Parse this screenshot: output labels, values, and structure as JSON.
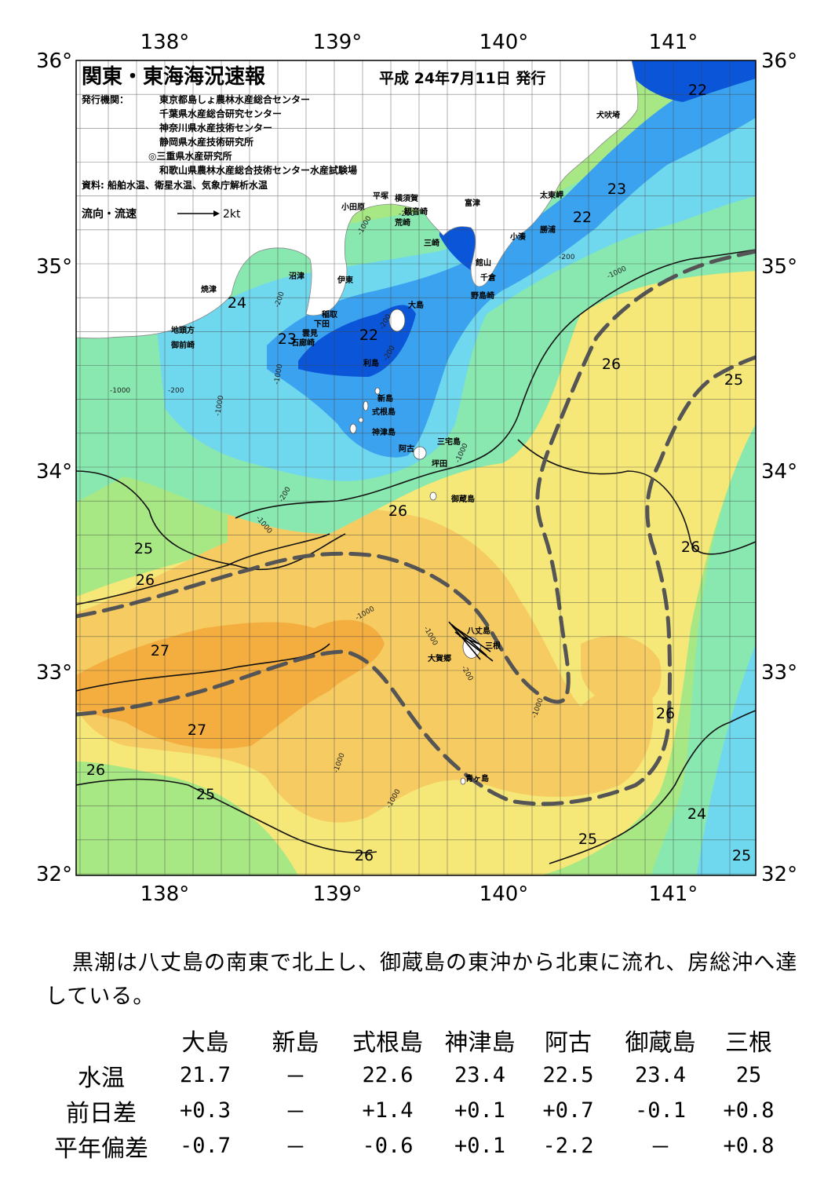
{
  "header": {
    "title": "関東・東海海況速報",
    "issue_date": "平成 24年7月11日 発行",
    "publisher_label": "発行機関：",
    "publishers": [
      "東京都島しょ農林水産総合センター",
      "千葉県水産総合研究センター",
      "神奈川県水産技術センター",
      "静岡県水産技術研究所",
      "◎三重県水産研究所",
      "和歌山県農林水産総合技術センター水産試験場"
    ],
    "source": "資料: 船舶水温、衛星水温、気象庁解析水温",
    "legend_label": "流向・流速",
    "legend_scale": "2kt"
  },
  "axes": {
    "lon_labels": [
      "138°",
      "139°",
      "140°",
      "141°"
    ],
    "lat_labels": [
      "36°",
      "35°",
      "34°",
      "33°",
      "32°"
    ]
  },
  "place_names": [
    "犬吠埼",
    "太東岬",
    "勝浦",
    "小湊",
    "館山",
    "千倉",
    "野島崎",
    "富津",
    "観音崎",
    "横須賀",
    "荒崎",
    "三崎",
    "平塚",
    "小田原",
    "沼津",
    "伊東",
    "焼津",
    "稲取",
    "下田",
    "雲見",
    "石廊崎",
    "地頭方",
    "御前崎",
    "大島",
    "利島",
    "新島",
    "式根島",
    "神津島",
    "三宅島",
    "阿古",
    "坪田",
    "御蔵島",
    "八丈島",
    "三根",
    "大賀郷",
    "青ヶ島"
  ],
  "isotherm_labels": [
    "22",
    "22",
    "23",
    "22",
    "24",
    "23",
    "22",
    "26",
    "25",
    "26",
    "26",
    "25",
    "26",
    "27",
    "27",
    "26",
    "25",
    "26",
    "26",
    "24",
    "25",
    "25"
  ],
  "depth_labels": [
    "-200",
    "-1000",
    "-1000",
    "-200",
    "-200",
    "-1000",
    "-200",
    "-200",
    "-1000",
    "-1000",
    "-200",
    "-200",
    "-1000",
    "-1000",
    "-1000",
    "-1000",
    "-200",
    "-1000",
    "-1000",
    "-1000"
  ],
  "summary_text": "黒潮は八丈島の南東で北上し、御蔵島の東沖から北東に流れ、房総沖へ達している。",
  "table": {
    "columns": [
      "大島",
      "新島",
      "式根島",
      "神津島",
      "阿古",
      "御蔵島",
      "三根"
    ],
    "rows": [
      {
        "label": "水温",
        "values": [
          "21.7",
          "－",
          "22.6",
          "23.4",
          "22.5",
          "23.4",
          "25"
        ]
      },
      {
        "label": "前日差",
        "values": [
          "+0.3",
          "－",
          "+1.4",
          "+0.1",
          "+0.7",
          "-0.1",
          "+0.8"
        ]
      },
      {
        "label": "平年偏差",
        "values": [
          "-0.7",
          "－",
          "-0.6",
          "+0.1",
          "-2.2",
          "－",
          "+0.8"
        ]
      }
    ]
  },
  "colors": {
    "t21": "#0a55d8",
    "t22": "#3aa2ee",
    "t23": "#6fd8ee",
    "t24": "#88e8b0",
    "t25": "#a8e884",
    "t26": "#f6e878",
    "t265": "#f6cc62",
    "t27": "#f4ae40",
    "kuroshio": "#555555",
    "land": "#ffffff"
  }
}
